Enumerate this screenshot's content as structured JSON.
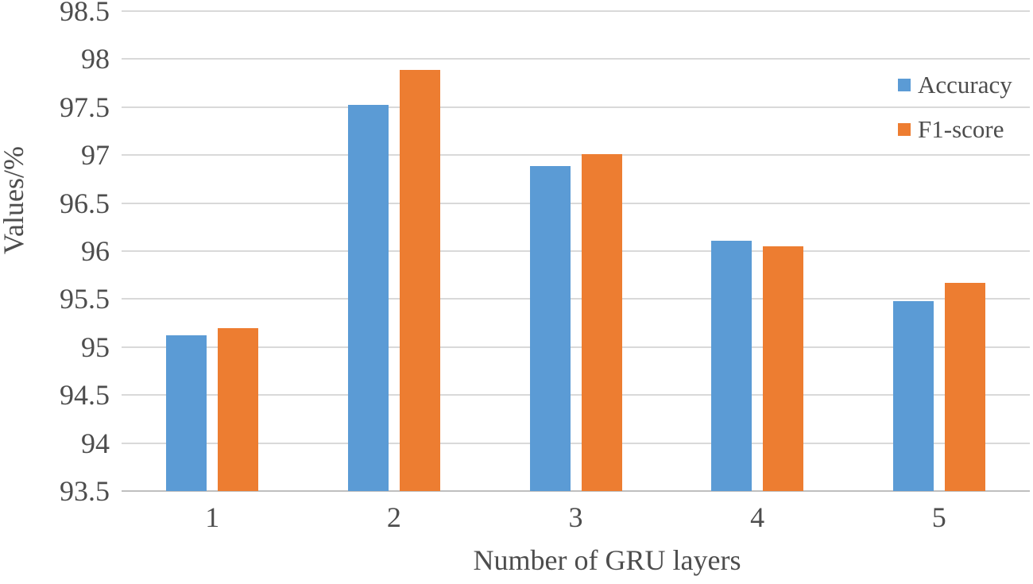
{
  "chart_data": {
    "type": "bar",
    "title": "",
    "xlabel": "Number of GRU layers",
    "ylabel": "Values/%",
    "categories": [
      "1",
      "2",
      "3",
      "4",
      "5"
    ],
    "series": [
      {
        "name": "Accuracy",
        "color": "#5B9BD5",
        "values": [
          95.12,
          97.52,
          96.89,
          96.11,
          95.48
        ]
      },
      {
        "name": "F1-score",
        "color": "#ED7D31",
        "values": [
          95.2,
          97.89,
          97.01,
          96.05,
          95.67
        ]
      }
    ],
    "y_axis": {
      "min": 93.5,
      "max": 98.5,
      "step": 0.5,
      "tick_labels": [
        "93.5",
        "94",
        "94.5",
        "95",
        "95.5",
        "96",
        "96.5",
        "97",
        "97.5",
        "98",
        "98.5"
      ]
    },
    "x_axis": {
      "tick_labels": [
        "1",
        "2",
        "3",
        "4",
        "5"
      ]
    },
    "grid": true,
    "legend_position": "right",
    "colors": {
      "gridline": "#D9D9D9",
      "axis_line": "#BFBFBF",
      "text": "#4D4D4D",
      "background": "#FFFFFF"
    }
  }
}
